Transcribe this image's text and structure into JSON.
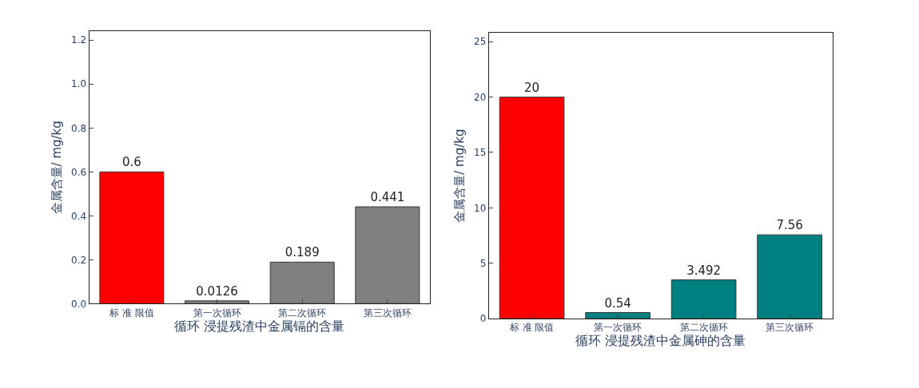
{
  "chart_data": [
    {
      "type": "bar",
      "xlabel": "循环 浸提残渣中金属镉的含量",
      "ylabel": "金属含量/ mg/kg",
      "categories": [
        "标 准 限值",
        "第一次循环",
        "第二次循环",
        "第三次循环"
      ],
      "values": [
        0.6,
        0.0126,
        0.189,
        0.441
      ],
      "colors": [
        "#ff0000",
        "#808080",
        "#808080",
        "#808080"
      ],
      "ylim": [
        0,
        1.24
      ],
      "yticks": [
        {
          "value": 0,
          "label": "0.0"
        },
        {
          "value": 0.2,
          "label": "0.2"
        },
        {
          "value": 0.4,
          "label": "0.4"
        },
        {
          "value": 0.6,
          "label": "0.6"
        },
        {
          "value": 0.8,
          "label": "0.8"
        },
        {
          "value": 1.0,
          "label": "1.0"
        },
        {
          "value": 1.2,
          "label": "1.2"
        }
      ],
      "data_labels": true
    },
    {
      "type": "bar",
      "xlabel": "循环 浸提残渣中金属砷的含量",
      "ylabel": "金属含量/ mg/kg",
      "categories": [
        "标 准 限值",
        "第一次循环",
        "第二次循环",
        "第三次循环"
      ],
      "values": [
        20,
        0.54,
        3.492,
        7.56
      ],
      "colors": [
        "#ff0000",
        "#008080",
        "#008080",
        "#008080"
      ],
      "ylim": [
        0,
        25.8
      ],
      "yticks": [
        0,
        5,
        10,
        15,
        20,
        25
      ],
      "data_labels": true
    }
  ]
}
